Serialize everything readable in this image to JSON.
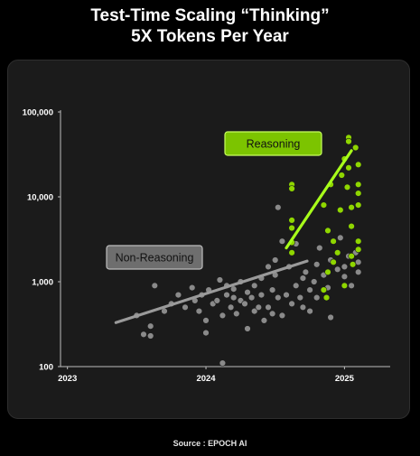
{
  "title_line1": "Test-Time Scaling “Thinking”",
  "title_line2": "5X Tokens Per Year",
  "source": "Source : EPOCH AI",
  "colors": {
    "reasoning": "#8fd600",
    "non_reasoning": "#8a8a8a",
    "background": "#000000",
    "panel": "#1b1b1b"
  },
  "chart_data": {
    "type": "scatter",
    "title": "",
    "xlabel": "",
    "ylabel": "",
    "yscale": "log",
    "xlim": [
      2022.95,
      2025.33
    ],
    "ylim": [
      100,
      100000
    ],
    "x_ticks": [
      2023,
      2024,
      2025
    ],
    "x_tick_labels": [
      "2023",
      "2024",
      "2025"
    ],
    "y_ticks": [
      100,
      1000,
      10000,
      100000
    ],
    "y_tick_labels": [
      "100",
      "1,000",
      "10,000",
      "100,000"
    ],
    "grid": false,
    "annotations": [
      {
        "text": "Reasoning",
        "series": "Reasoning"
      },
      {
        "text": "Non-Reasoning",
        "series": "Non-Reasoning"
      }
    ],
    "trend_lines": [
      {
        "series": "Non-Reasoning",
        "x": [
          2023.35,
          2024.73
        ],
        "y": [
          330,
          1750
        ]
      },
      {
        "series": "Reasoning",
        "x": [
          2024.58,
          2025.05
        ],
        "y": [
          2500,
          35000
        ]
      }
    ],
    "series": [
      {
        "name": "Non-Reasoning",
        "points": [
          [
            2023.5,
            400
          ],
          [
            2023.55,
            240
          ],
          [
            2023.6,
            230
          ],
          [
            2023.6,
            300
          ],
          [
            2023.63,
            900
          ],
          [
            2023.7,
            450
          ],
          [
            2023.75,
            550
          ],
          [
            2023.8,
            700
          ],
          [
            2023.85,
            500
          ],
          [
            2023.9,
            850
          ],
          [
            2023.92,
            600
          ],
          [
            2023.95,
            450
          ],
          [
            2023.97,
            700
          ],
          [
            2024.0,
            350
          ],
          [
            2024.0,
            250
          ],
          [
            2024.02,
            800
          ],
          [
            2024.05,
            550
          ],
          [
            2024.08,
            600
          ],
          [
            2024.1,
            1050
          ],
          [
            2024.12,
            110
          ],
          [
            2024.12,
            400
          ],
          [
            2024.15,
            700
          ],
          [
            2024.15,
            900
          ],
          [
            2024.18,
            500
          ],
          [
            2024.2,
            820
          ],
          [
            2024.2,
            650
          ],
          [
            2024.22,
            420
          ],
          [
            2024.25,
            600
          ],
          [
            2024.25,
            1000
          ],
          [
            2024.28,
            550
          ],
          [
            2024.3,
            750
          ],
          [
            2024.3,
            280
          ],
          [
            2024.33,
            650
          ],
          [
            2024.35,
            900
          ],
          [
            2024.35,
            450
          ],
          [
            2024.38,
            500
          ],
          [
            2024.4,
            700
          ],
          [
            2024.4,
            1100
          ],
          [
            2024.42,
            350
          ],
          [
            2024.45,
            1500
          ],
          [
            2024.45,
            500
          ],
          [
            2024.48,
            800
          ],
          [
            2024.48,
            420
          ],
          [
            2024.5,
            1200
          ],
          [
            2024.5,
            1800
          ],
          [
            2024.52,
            650
          ],
          [
            2024.52,
            7500
          ],
          [
            2024.55,
            400
          ],
          [
            2024.55,
            3000
          ],
          [
            2024.58,
            700
          ],
          [
            2024.6,
            1500
          ],
          [
            2024.62,
            550
          ],
          [
            2024.65,
            900
          ],
          [
            2024.65,
            2800
          ],
          [
            2024.68,
            650
          ],
          [
            2024.7,
            1100
          ],
          [
            2024.7,
            500
          ],
          [
            2024.72,
            1300
          ],
          [
            2024.75,
            800
          ],
          [
            2024.75,
            450
          ],
          [
            2024.78,
            1000
          ],
          [
            2024.8,
            1600
          ],
          [
            2024.8,
            650
          ],
          [
            2024.82,
            2500
          ],
          [
            2024.85,
            1200
          ],
          [
            2024.88,
            850
          ],
          [
            2024.9,
            1800
          ],
          [
            2024.9,
            380
          ],
          [
            2024.95,
            1400
          ],
          [
            2024.97,
            3300
          ],
          [
            2025.0,
            1500
          ],
          [
            2025.0,
            1150
          ],
          [
            2025.03,
            2000
          ],
          [
            2025.05,
            900
          ],
          [
            2025.08,
            2200
          ],
          [
            2025.1,
            1300
          ],
          [
            2025.1,
            1700
          ]
        ]
      },
      {
        "name": "Reasoning",
        "points": [
          [
            2024.62,
            14000
          ],
          [
            2024.62,
            12500
          ],
          [
            2024.62,
            5300
          ],
          [
            2024.62,
            4300
          ],
          [
            2024.62,
            2900
          ],
          [
            2024.62,
            2200
          ],
          [
            2024.85,
            8000
          ],
          [
            2024.88,
            4000
          ],
          [
            2024.9,
            14000
          ],
          [
            2024.92,
            3000
          ],
          [
            2024.92,
            1700
          ],
          [
            2024.95,
            2200
          ],
          [
            2024.97,
            7000
          ],
          [
            2024.98,
            18000
          ],
          [
            2025.0,
            28000
          ],
          [
            2025.02,
            13000
          ],
          [
            2025.03,
            22000
          ],
          [
            2025.03,
            50000
          ],
          [
            2025.03,
            45000
          ],
          [
            2025.05,
            7500
          ],
          [
            2025.05,
            4500
          ],
          [
            2025.05,
            2000
          ],
          [
            2025.06,
            1600
          ],
          [
            2025.08,
            38000
          ],
          [
            2025.1,
            24000
          ],
          [
            2025.1,
            14000
          ],
          [
            2025.1,
            11000
          ],
          [
            2025.1,
            8000
          ],
          [
            2025.1,
            3000
          ],
          [
            2025.1,
            2400
          ],
          [
            2024.88,
            1300
          ],
          [
            2024.85,
            800
          ],
          [
            2024.87,
            650
          ],
          [
            2025.0,
            900
          ]
        ]
      }
    ]
  }
}
